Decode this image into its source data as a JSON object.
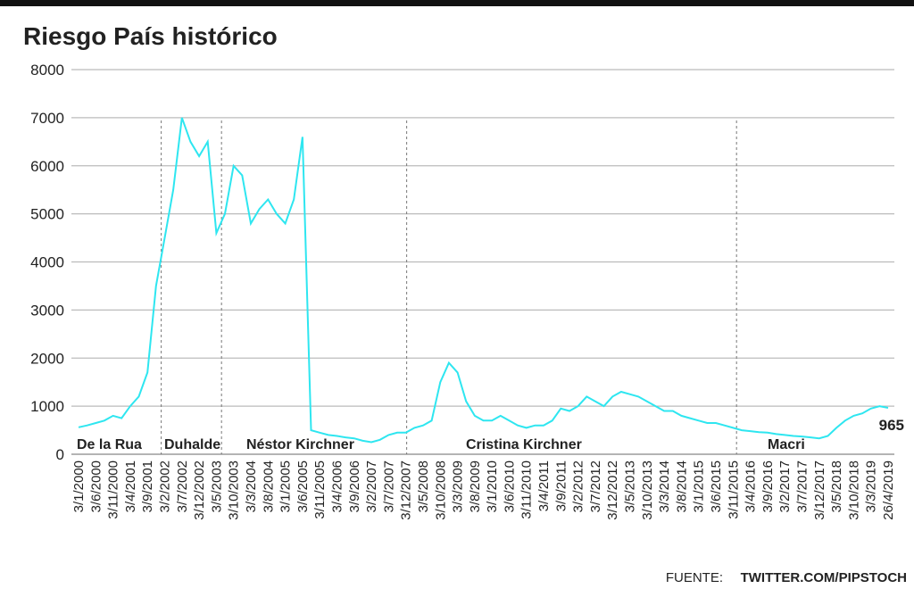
{
  "chart_data": {
    "type": "line",
    "title": "Riesgo País histórico",
    "source_label": "FUENTE:",
    "source": "TWITTER.COM/PIPSTOCH",
    "annotations": [
      "De la Rua",
      "Duhalde",
      "Néstor Kirchner",
      "Cristina Kirchner",
      "Macri"
    ],
    "categories": [
      "3/1/2000",
      null,
      "3/6/2000",
      null,
      "3/11/2000",
      null,
      "3/4/2001",
      null,
      "3/9/2001",
      null,
      "3/2/2002",
      null,
      "3/7/2002",
      null,
      "3/12/2002",
      null,
      "3/5/2003",
      null,
      "3/10/2003",
      null,
      "3/3/2004",
      null,
      "3/8/2004",
      null,
      "3/1/2005",
      null,
      "3/6/2005",
      null,
      "3/11/2005",
      null,
      "3/4/2006",
      null,
      "3/9/2006",
      null,
      "3/2/2007",
      null,
      "3/7/2007",
      null,
      "3/12/2007",
      null,
      "3/5/2008",
      null,
      "3/10/2008",
      null,
      "3/3/2009",
      null,
      "3/8/2009",
      null,
      "3/1/2010",
      null,
      "3/6/2010",
      null,
      "3/11/2010",
      null,
      "3/4/2011",
      null,
      "3/9/2011",
      null,
      "3/2/2012",
      null,
      "3/7/2012",
      null,
      "3/12/2012",
      null,
      "3/5/2013",
      null,
      "3/10/2013",
      null,
      "3/3/2014",
      null,
      "3/8/2014",
      null,
      "3/1/2015",
      null,
      "3/6/2015",
      null,
      "3/11/2015",
      null,
      "3/4/2016",
      null,
      "3/9/2016",
      null,
      "3/2/2017",
      null,
      "3/7/2017",
      null,
      "3/12/2017",
      null,
      "3/5/2018",
      null,
      "3/10/2018",
      null,
      "3/3/2019",
      null,
      "26/4/2019"
    ],
    "series": [
      {
        "color": "#2ee6f0",
        "values": [
          560,
          600,
          650,
          700,
          800,
          750,
          1000,
          1200,
          1700,
          3500,
          4500,
          5500,
          7000,
          6500,
          6200,
          6500,
          4600,
          5000,
          6000,
          5800,
          4800,
          5100,
          5300,
          5000,
          4800,
          5300,
          6600,
          500,
          450,
          400,
          380,
          350,
          330,
          280,
          250,
          300,
          400,
          450,
          450,
          550,
          600,
          700,
          1500,
          1900,
          1700,
          1100,
          800,
          700,
          700,
          800,
          700,
          600,
          550,
          600,
          600,
          700,
          950,
          900,
          1000,
          1200,
          1100,
          1000,
          1200,
          1300,
          1250,
          1200,
          1100,
          1000,
          900,
          900,
          800,
          750,
          700,
          650,
          650,
          600,
          550,
          500,
          480,
          460,
          450,
          420,
          400,
          380,
          370,
          350,
          330,
          380,
          550,
          700,
          800,
          850,
          950,
          1000,
          965
        ]
      }
    ],
    "ylim": [
      0,
      8000
    ],
    "yticks": [
      0,
      1000,
      2000,
      3000,
      4000,
      5000,
      6000,
      7000,
      8000
    ],
    "grid": true
  }
}
